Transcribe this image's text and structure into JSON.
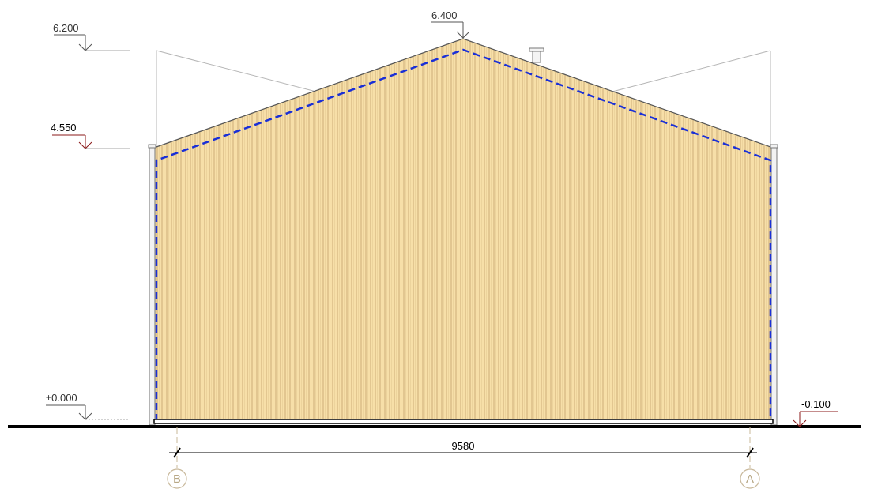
{
  "drawing": {
    "elevations": {
      "top_left": "6.200",
      "ridge": "6.400",
      "eave": "4.550",
      "floor": "±0.000",
      "ground": "-0.100"
    },
    "dimension": "9580",
    "axes": {
      "left": "B",
      "right": "A"
    }
  },
  "colors": {
    "cladding": "#f7dfa8",
    "cladding_rib": "#c9ad73",
    "insulation_line": "#1a2fd6",
    "level_red": "#8b1a1a",
    "level_grey": "#555555",
    "grid_axis": "#c8b89a",
    "ground": "#000000"
  }
}
